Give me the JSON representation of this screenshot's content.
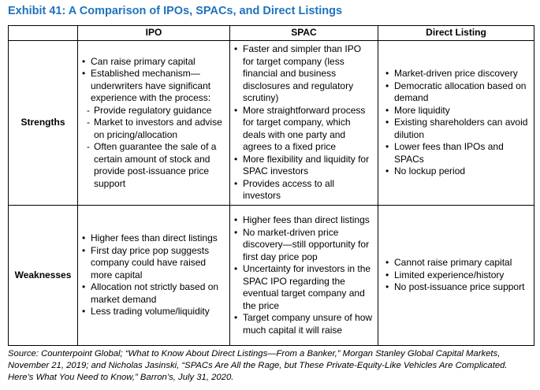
{
  "title": "Exhibit 41: A Comparison of IPOs, SPACs, and Direct Listings",
  "headers": {
    "ipo": "IPO",
    "spac": "SPAC",
    "direct": "Direct Listing"
  },
  "strengths": {
    "label": "Strengths",
    "ipo": [
      {
        "type": "dot",
        "text": "Can raise primary capital"
      },
      {
        "type": "dot",
        "text": "Established mechanism—underwriters have significant experience with the process:"
      },
      {
        "type": "dash",
        "text": "Provide regulatory guidance"
      },
      {
        "type": "dash",
        "text": "Market to investors and advise on pricing/allocation"
      },
      {
        "type": "dash",
        "text": "Often guarantee the sale of a certain amount of stock and provide post-issuance price support"
      }
    ],
    "spac": [
      {
        "type": "dot",
        "text": "Faster and simpler than IPO for target company (less financial and business disclosures and regulatory scrutiny)"
      },
      {
        "type": "dot",
        "text": "More straightforward process for target company, which deals with one party and agrees to a fixed price"
      },
      {
        "type": "dot",
        "text": "More flexibility and liquidity for SPAC investors"
      },
      {
        "type": "dot",
        "text": "Provides access to all investors"
      }
    ],
    "direct": [
      {
        "type": "dot",
        "text": "Market-driven price discovery"
      },
      {
        "type": "dot",
        "text": "Democratic allocation based on demand"
      },
      {
        "type": "dot",
        "text": "More liquidity"
      },
      {
        "type": "dot",
        "text": "Existing shareholders can avoid dilution"
      },
      {
        "type": "dot",
        "text": "Lower fees than IPOs and SPACs"
      },
      {
        "type": "dot",
        "text": "No lockup period"
      }
    ]
  },
  "weaknesses": {
    "label": "Weaknesses",
    "ipo": [
      {
        "type": "dot",
        "text": "Higher fees than direct listings"
      },
      {
        "type": "dot",
        "text": "First day price pop suggests company could have raised more capital"
      },
      {
        "type": "dot",
        "text": "Allocation not strictly based on market demand"
      },
      {
        "type": "dot",
        "text": "Less trading volume/liquidity"
      }
    ],
    "spac": [
      {
        "type": "dot",
        "text": "Higher fees than direct listings"
      },
      {
        "type": "dot",
        "text": "No market-driven price discovery—still opportunity for first day price pop"
      },
      {
        "type": "dot",
        "text": "Uncertainty for investors in the SPAC IPO regarding the eventual target company and the price"
      },
      {
        "type": "dot",
        "text": "Target company unsure of how much capital it will raise"
      }
    ],
    "direct": [
      {
        "type": "dot",
        "text": "Cannot raise primary capital"
      },
      {
        "type": "dot",
        "text": "Limited experience/history"
      },
      {
        "type": "dot",
        "text": "No post-issuance price support"
      }
    ]
  },
  "source": {
    "part1": "Source: Counterpoint Global; “What to Know About Direct Listings—From a Banker,” Morgan Stanley Global Capital Markets, November 21, 2019; and Nicholas Jasinski, “SPACs Are All the Rage, but These Private-Equity-Like Vehicles Are Complicated. Here’s What You Need to Know,” ",
    "publication": "Barron’s",
    "part2": ", July 31, 2020."
  }
}
